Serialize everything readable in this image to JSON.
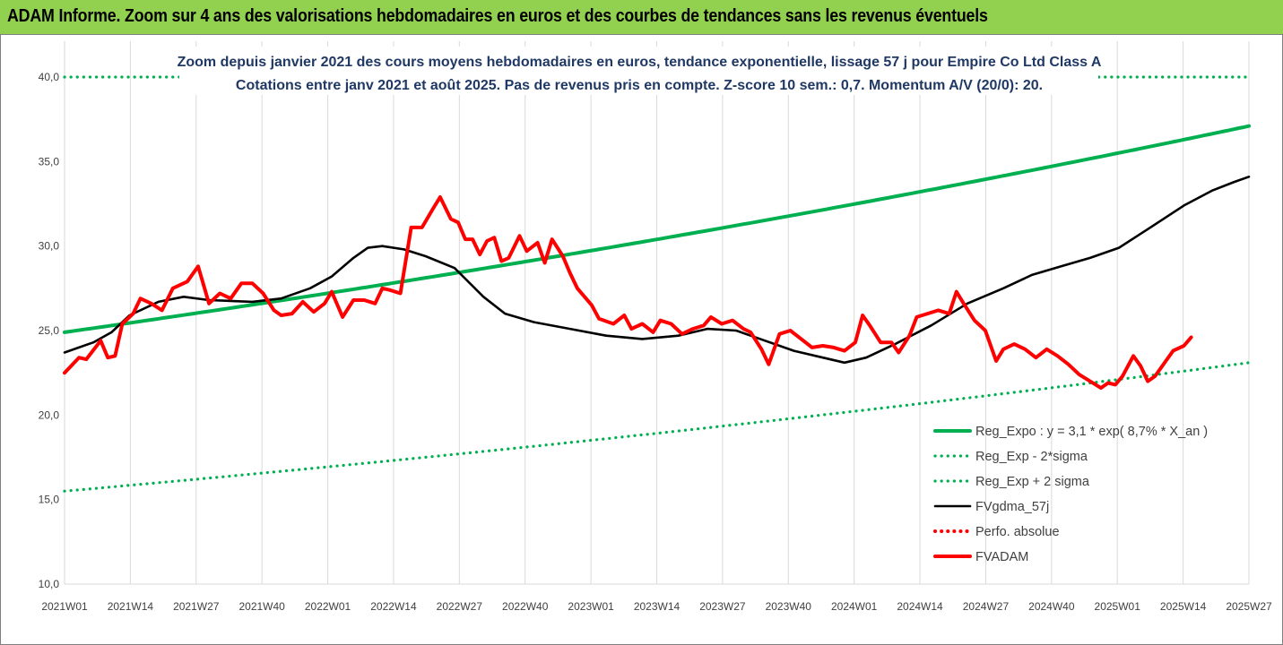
{
  "banner": {
    "title": "ADAM Informe. Zoom sur 4 ans des valorisations hebdomadaires en euros et des courbes de tendances sans les revenus éventuels"
  },
  "chart_data": {
    "type": "line",
    "title": "Zoom depuis janvier 2021 des cours moyens hebdomadaires en euros, tendance exponentielle, lissage 57 j pour Empire Co Ltd Class A",
    "subtitle": "Cotations entre janv 2021 et août 2025. Pas de revenus pris en compte. Z-score 10 sem.: 0,7. Momentum A/V (20/0): 20.",
    "xlabel": "",
    "ylabel": "",
    "ylim": [
      10,
      40
    ],
    "y_ticks": [
      "10,0",
      "15,0",
      "20,0",
      "25,0",
      "30,0",
      "35,0",
      "40,0"
    ],
    "x_ticks": [
      "2021W01",
      "2021W14",
      "2021W27",
      "2021W40",
      "2022W01",
      "2022W14",
      "2022W27",
      "2022W40",
      "2023W01",
      "2023W14",
      "2023W27",
      "2023W40",
      "2024W01",
      "2024W14",
      "2024W27",
      "2024W40",
      "2025W01",
      "2025W14",
      "2025W27"
    ],
    "grid": "vertical",
    "legend_position": "bottom-right",
    "week_count": 240,
    "series": [
      {
        "name": "Reg_Expo : y = 3,1 * exp( 8,7% *  X_an )",
        "color": "#00b050",
        "style": "solid",
        "kind": "exp",
        "start": 24.9,
        "end": 37.1
      },
      {
        "name": "Reg_Exp - 2*sigma",
        "color": "#00b050",
        "style": "dotted",
        "kind": "exp",
        "start": 15.5,
        "end": 23.1
      },
      {
        "name": "Reg_Exp + 2 sigma",
        "color": "#00b050",
        "style": "dotted",
        "kind": "exp",
        "start": 40.0,
        "end": 40.0,
        "segments": [
          [
            0,
            0.35
          ],
          [
            0.84,
            1.0
          ]
        ]
      },
      {
        "name": "FVgdma_57j",
        "color": "#000000",
        "style": "solid",
        "kind": "points",
        "points": [
          [
            0,
            23.7
          ],
          [
            8,
            24.3
          ],
          [
            13,
            24.9
          ],
          [
            18,
            25.9
          ],
          [
            26,
            26.7
          ],
          [
            33,
            27.0
          ],
          [
            40,
            26.8
          ],
          [
            52,
            26.7
          ],
          [
            60,
            26.9
          ],
          [
            68,
            27.5
          ],
          [
            74,
            28.2
          ],
          [
            80,
            29.3
          ],
          [
            84,
            29.9
          ],
          [
            88,
            30.0
          ],
          [
            94,
            29.8
          ],
          [
            100,
            29.4
          ],
          [
            108,
            28.7
          ],
          [
            116,
            27.0
          ],
          [
            122,
            26.0
          ],
          [
            130,
            25.5
          ],
          [
            140,
            25.1
          ],
          [
            150,
            24.7
          ],
          [
            160,
            24.5
          ],
          [
            170,
            24.7
          ],
          [
            178,
            25.1
          ],
          [
            186,
            25.0
          ],
          [
            194,
            24.4
          ],
          [
            202,
            23.8
          ],
          [
            210,
            23.4
          ],
          [
            216,
            23.1
          ],
          [
            222,
            23.4
          ],
          [
            230,
            24.2
          ],
          [
            240,
            25.3
          ],
          [
            250,
            26.6
          ],
          [
            260,
            27.5
          ],
          [
            268,
            28.3
          ],
          [
            276,
            28.8
          ],
          [
            284,
            29.3
          ],
          [
            292,
            29.9
          ],
          [
            300,
            31.0
          ],
          [
            310,
            32.4
          ],
          [
            318,
            33.3
          ],
          [
            324,
            33.8
          ],
          [
            328,
            34.1
          ]
        ]
      },
      {
        "name": "Perfo. absolue",
        "color": "#ff0000",
        "style": "dotted",
        "kind": "none"
      },
      {
        "name": "FVADAM",
        "color": "#ff0000",
        "style": "solid",
        "kind": "points",
        "points": [
          [
            0,
            22.5
          ],
          [
            4,
            23.4
          ],
          [
            6,
            23.3
          ],
          [
            10,
            24.4
          ],
          [
            12,
            23.4
          ],
          [
            14,
            23.5
          ],
          [
            16,
            25.4
          ],
          [
            19,
            26.0
          ],
          [
            21,
            26.9
          ],
          [
            24,
            26.6
          ],
          [
            27,
            26.2
          ],
          [
            30,
            27.5
          ],
          [
            34,
            27.9
          ],
          [
            37,
            28.8
          ],
          [
            40,
            26.6
          ],
          [
            43,
            27.2
          ],
          [
            46,
            26.9
          ],
          [
            49,
            27.8
          ],
          [
            52,
            27.8
          ],
          [
            55,
            27.2
          ],
          [
            58,
            26.2
          ],
          [
            60,
            25.9
          ],
          [
            63,
            26.0
          ],
          [
            66,
            26.7
          ],
          [
            69,
            26.1
          ],
          [
            72,
            26.6
          ],
          [
            74,
            27.3
          ],
          [
            77,
            25.8
          ],
          [
            80,
            26.8
          ],
          [
            83,
            26.8
          ],
          [
            86,
            26.6
          ],
          [
            88,
            27.5
          ],
          [
            90,
            27.4
          ],
          [
            93,
            27.2
          ],
          [
            96,
            31.1
          ],
          [
            99,
            31.1
          ],
          [
            102,
            32.2
          ],
          [
            104,
            32.9
          ],
          [
            107,
            31.6
          ],
          [
            109,
            31.4
          ],
          [
            111,
            30.4
          ],
          [
            113,
            30.4
          ],
          [
            115,
            29.5
          ],
          [
            117,
            30.3
          ],
          [
            119,
            30.5
          ],
          [
            121,
            29.1
          ],
          [
            123,
            29.3
          ],
          [
            126,
            30.6
          ],
          [
            128,
            29.7
          ],
          [
            131,
            30.2
          ],
          [
            133,
            29.0
          ],
          [
            135,
            30.4
          ],
          [
            138,
            29.4
          ],
          [
            140,
            28.4
          ],
          [
            142,
            27.5
          ],
          [
            144,
            27.0
          ],
          [
            146,
            26.5
          ],
          [
            148,
            25.7
          ],
          [
            152,
            25.4
          ],
          [
            155,
            25.9
          ],
          [
            157,
            25.1
          ],
          [
            160,
            25.4
          ],
          [
            163,
            24.9
          ],
          [
            165,
            25.6
          ],
          [
            168,
            25.4
          ],
          [
            171,
            24.8
          ],
          [
            174,
            25.1
          ],
          [
            177,
            25.3
          ],
          [
            179,
            25.8
          ],
          [
            182,
            25.4
          ],
          [
            185,
            25.6
          ],
          [
            188,
            25.1
          ],
          [
            190,
            24.9
          ],
          [
            193,
            23.9
          ],
          [
            195,
            23.0
          ],
          [
            198,
            24.8
          ],
          [
            201,
            25.0
          ],
          [
            204,
            24.5
          ],
          [
            207,
            24.0
          ],
          [
            210,
            24.1
          ],
          [
            213,
            24.0
          ],
          [
            216,
            23.8
          ],
          [
            219,
            24.3
          ],
          [
            221,
            25.9
          ],
          [
            223,
            25.3
          ],
          [
            226,
            24.3
          ],
          [
            229,
            24.3
          ],
          [
            231,
            23.7
          ],
          [
            234,
            24.7
          ],
          [
            236,
            25.8
          ],
          [
            239,
            26.0
          ],
          [
            242,
            26.2
          ],
          [
            245,
            26.0
          ],
          [
            247,
            27.3
          ],
          [
            249,
            26.6
          ],
          [
            252,
            25.6
          ],
          [
            255,
            25.0
          ],
          [
            258,
            23.2
          ],
          [
            260,
            23.9
          ],
          [
            263,
            24.2
          ],
          [
            266,
            23.9
          ],
          [
            269,
            23.4
          ],
          [
            272,
            23.9
          ],
          [
            275,
            23.5
          ],
          [
            278,
            23.0
          ],
          [
            281,
            22.4
          ],
          [
            284,
            22.0
          ],
          [
            287,
            21.6
          ],
          [
            289,
            21.9
          ],
          [
            291,
            21.8
          ],
          [
            293,
            22.3
          ],
          [
            296,
            23.5
          ],
          [
            298,
            22.9
          ],
          [
            300,
            22.0
          ],
          [
            302,
            22.3
          ],
          [
            304,
            22.9
          ],
          [
            307,
            23.8
          ],
          [
            310,
            24.1
          ],
          [
            312,
            24.6
          ]
        ]
      }
    ]
  }
}
